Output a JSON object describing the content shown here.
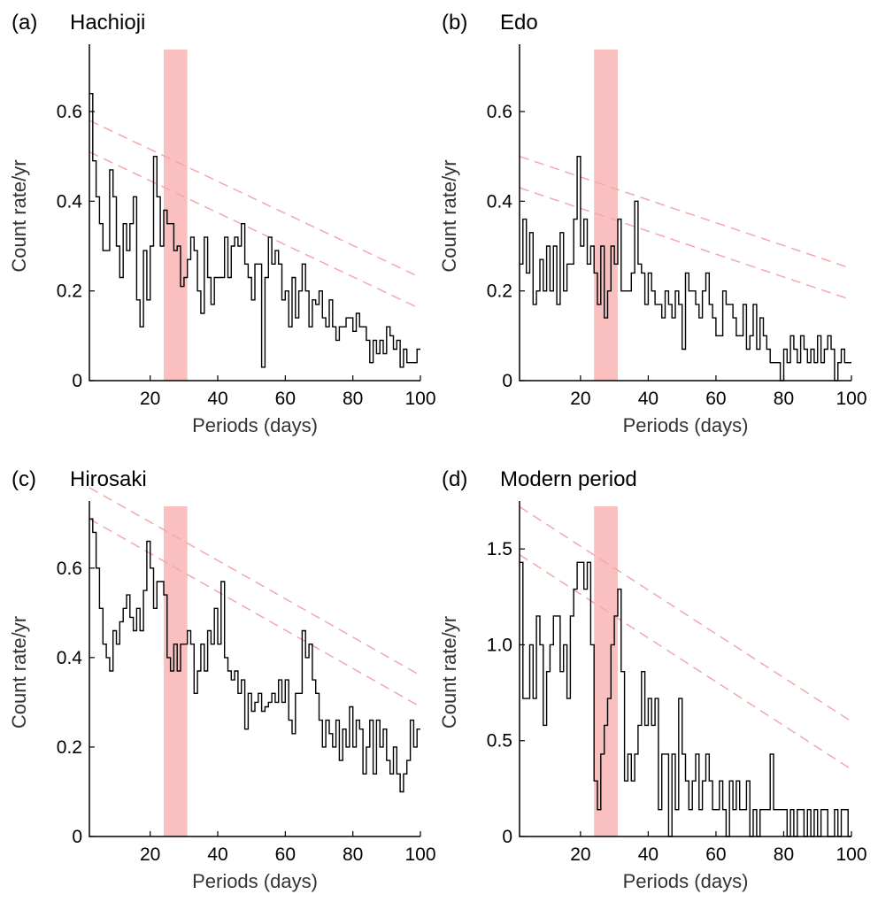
{
  "chart_data": [
    {
      "type": "line",
      "panel_label": "(a)",
      "title": "Hachioji",
      "xlabel": "Periods (days)",
      "ylabel": "Count rate/yr",
      "xlim": [
        2,
        100
      ],
      "ylim": [
        0,
        0.75
      ],
      "xticks": [
        20,
        40,
        60,
        80,
        100
      ],
      "yticks": [
        0,
        0.2,
        0.4,
        0.6
      ],
      "ytick_labels": [
        "0",
        "0.2",
        "0.4",
        "0.6"
      ],
      "grid": false,
      "highlight_band": [
        24,
        31
      ],
      "x": [
        2,
        3,
        4,
        5,
        6,
        7,
        8,
        9,
        10,
        11,
        12,
        13,
        14,
        15,
        16,
        17,
        18,
        19,
        20,
        21,
        22,
        23,
        24,
        25,
        26,
        27,
        28,
        29,
        30,
        31,
        32,
        33,
        34,
        35,
        36,
        37,
        38,
        39,
        40,
        41,
        42,
        43,
        44,
        45,
        46,
        47,
        48,
        49,
        50,
        51,
        52,
        53,
        54,
        55,
        56,
        57,
        58,
        59,
        60,
        61,
        62,
        63,
        64,
        65,
        66,
        67,
        68,
        69,
        70,
        71,
        72,
        73,
        74,
        75,
        76,
        77,
        78,
        79,
        80,
        81,
        82,
        83,
        84,
        85,
        86,
        87,
        88,
        89,
        90,
        91,
        92,
        93,
        94,
        95,
        96,
        97,
        98,
        99
      ],
      "values": [
        0.64,
        0.49,
        0.41,
        0.35,
        0.29,
        0.29,
        0.47,
        0.41,
        0.3,
        0.23,
        0.35,
        0.29,
        0.35,
        0.41,
        0.18,
        0.12,
        0.29,
        0.18,
        0.3,
        0.5,
        0.41,
        0.3,
        0.38,
        0.35,
        0.35,
        0.29,
        0.3,
        0.21,
        0.23,
        0.27,
        0.32,
        0.29,
        0.2,
        0.15,
        0.32,
        0.23,
        0.17,
        0.23,
        0.23,
        0.23,
        0.32,
        0.23,
        0.3,
        0.32,
        0.3,
        0.35,
        0.26,
        0.23,
        0.18,
        0.26,
        0.26,
        0.03,
        0.23,
        0.32,
        0.26,
        0.29,
        0.26,
        0.18,
        0.2,
        0.12,
        0.23,
        0.14,
        0.2,
        0.26,
        0.2,
        0.12,
        0.18,
        0.17,
        0.2,
        0.14,
        0.12,
        0.18,
        0.12,
        0.09,
        0.12,
        0.12,
        0.14,
        0.14,
        0.11,
        0.15,
        0.12,
        0.12,
        0.09,
        0.04,
        0.09,
        0.06,
        0.09,
        0.06,
        0.12,
        0.1,
        0.07,
        0.09,
        0.03,
        0.07,
        0.04,
        0.04,
        0.04,
        0.07
      ],
      "confidence_lines": [
        [
          [
            2,
            0.58
          ],
          [
            100,
            0.23
          ]
        ],
        [
          [
            2,
            0.51
          ],
          [
            100,
            0.16
          ]
        ]
      ]
    },
    {
      "type": "line",
      "panel_label": "(b)",
      "title": "Edo",
      "xlabel": "Periods (days)",
      "ylabel": "Count rate/yr",
      "xlim": [
        2,
        100
      ],
      "ylim": [
        0,
        0.75
      ],
      "xticks": [
        20,
        40,
        60,
        80,
        100
      ],
      "yticks": [
        0,
        0.2,
        0.4,
        0.6
      ],
      "ytick_labels": [
        "0",
        "0.2",
        "0.4",
        "0.6"
      ],
      "grid": false,
      "highlight_band": [
        24,
        31
      ],
      "x": [
        2,
        3,
        4,
        5,
        6,
        7,
        8,
        9,
        10,
        11,
        12,
        13,
        14,
        15,
        16,
        17,
        18,
        19,
        20,
        21,
        22,
        23,
        24,
        25,
        26,
        27,
        28,
        29,
        30,
        31,
        32,
        33,
        34,
        35,
        36,
        37,
        38,
        39,
        40,
        41,
        42,
        43,
        44,
        45,
        46,
        47,
        48,
        49,
        50,
        51,
        52,
        53,
        54,
        55,
        56,
        57,
        58,
        59,
        60,
        61,
        62,
        63,
        64,
        65,
        66,
        67,
        68,
        69,
        70,
        71,
        72,
        73,
        74,
        75,
        76,
        77,
        78,
        79,
        80,
        81,
        82,
        83,
        84,
        85,
        86,
        87,
        88,
        89,
        90,
        91,
        92,
        93,
        94,
        95,
        96,
        97,
        98,
        99
      ],
      "values": [
        0.26,
        0.36,
        0.24,
        0.33,
        0.17,
        0.2,
        0.27,
        0.2,
        0.3,
        0.2,
        0.3,
        0.17,
        0.33,
        0.2,
        0.26,
        0.26,
        0.36,
        0.5,
        0.3,
        0.36,
        0.26,
        0.3,
        0.24,
        0.17,
        0.3,
        0.14,
        0.2,
        0.3,
        0.26,
        0.36,
        0.2,
        0.2,
        0.2,
        0.24,
        0.4,
        0.26,
        0.24,
        0.17,
        0.24,
        0.2,
        0.17,
        0.17,
        0.14,
        0.2,
        0.17,
        0.14,
        0.2,
        0.17,
        0.07,
        0.24,
        0.2,
        0.2,
        0.17,
        0.14,
        0.2,
        0.24,
        0.17,
        0.14,
        0.1,
        0.1,
        0.2,
        0.17,
        0.17,
        0.14,
        0.1,
        0.1,
        0.17,
        0.07,
        0.1,
        0.17,
        0.07,
        0.14,
        0.1,
        0.07,
        0.04,
        0.04,
        0.04,
        0.0,
        0.07,
        0.04,
        0.1,
        0.07,
        0.04,
        0.1,
        0.07,
        0.04,
        0.07,
        0.04,
        0.1,
        0.04,
        0.07,
        0.1,
        0.07,
        0.0,
        0.04,
        0.07,
        0.04,
        0.04
      ],
      "confidence_lines": [
        [
          [
            2,
            0.5
          ],
          [
            100,
            0.25
          ]
        ],
        [
          [
            2,
            0.43
          ],
          [
            100,
            0.18
          ]
        ]
      ]
    },
    {
      "type": "line",
      "panel_label": "(c)",
      "title": "Hirosaki",
      "xlabel": "Periods (days)",
      "ylabel": "Count rate/yr",
      "xlim": [
        2,
        100
      ],
      "ylim": [
        0,
        0.75
      ],
      "xticks": [
        20,
        40,
        60,
        80,
        100
      ],
      "yticks": [
        0,
        0.2,
        0.4,
        0.6
      ],
      "ytick_labels": [
        "0",
        "0.2",
        "0.4",
        "0.6"
      ],
      "grid": false,
      "highlight_band": [
        24,
        31
      ],
      "x": [
        2,
        3,
        4,
        5,
        6,
        7,
        8,
        9,
        10,
        11,
        12,
        13,
        14,
        15,
        16,
        17,
        18,
        19,
        20,
        21,
        22,
        23,
        24,
        25,
        26,
        27,
        28,
        29,
        30,
        31,
        32,
        33,
        34,
        35,
        36,
        37,
        38,
        39,
        40,
        41,
        42,
        43,
        44,
        45,
        46,
        47,
        48,
        49,
        50,
        51,
        52,
        53,
        54,
        55,
        56,
        57,
        58,
        59,
        60,
        61,
        62,
        63,
        64,
        65,
        66,
        67,
        68,
        69,
        70,
        71,
        72,
        73,
        74,
        75,
        76,
        77,
        78,
        79,
        80,
        81,
        82,
        83,
        84,
        85,
        86,
        87,
        88,
        89,
        90,
        91,
        92,
        93,
        94,
        95,
        96,
        97,
        98,
        99
      ],
      "values": [
        0.71,
        0.68,
        0.6,
        0.51,
        0.43,
        0.4,
        0.37,
        0.46,
        0.43,
        0.48,
        0.51,
        0.54,
        0.49,
        0.46,
        0.51,
        0.46,
        0.55,
        0.66,
        0.6,
        0.51,
        0.57,
        0.57,
        0.54,
        0.4,
        0.37,
        0.43,
        0.37,
        0.43,
        0.43,
        0.46,
        0.43,
        0.32,
        0.37,
        0.43,
        0.37,
        0.46,
        0.43,
        0.51,
        0.43,
        0.57,
        0.4,
        0.37,
        0.35,
        0.37,
        0.32,
        0.35,
        0.24,
        0.32,
        0.28,
        0.3,
        0.32,
        0.28,
        0.29,
        0.3,
        0.32,
        0.3,
        0.35,
        0.3,
        0.35,
        0.26,
        0.23,
        0.32,
        0.32,
        0.46,
        0.4,
        0.43,
        0.35,
        0.32,
        0.26,
        0.2,
        0.26,
        0.23,
        0.2,
        0.26,
        0.17,
        0.24,
        0.2,
        0.29,
        0.2,
        0.26,
        0.24,
        0.14,
        0.2,
        0.26,
        0.14,
        0.26,
        0.2,
        0.24,
        0.17,
        0.14,
        0.2,
        0.14,
        0.1,
        0.14,
        0.17,
        0.26,
        0.2,
        0.24
      ],
      "confidence_lines": [
        [
          [
            2,
            0.78
          ],
          [
            100,
            0.36
          ]
        ],
        [
          [
            2,
            0.71
          ],
          [
            100,
            0.29
          ]
        ]
      ]
    },
    {
      "type": "line",
      "panel_label": "(d)",
      "title": "Modern period",
      "xlabel": "Periods (days)",
      "ylabel": "Count rate/yr",
      "xlim": [
        2,
        100
      ],
      "ylim": [
        0,
        1.75
      ],
      "xticks": [
        20,
        40,
        60,
        80,
        100
      ],
      "yticks": [
        0,
        0.5,
        1.0,
        1.5
      ],
      "ytick_labels": [
        "0",
        "0.5",
        "1.0",
        "1.5"
      ],
      "grid": false,
      "highlight_band": [
        24,
        31
      ],
      "x": [
        2,
        3,
        4,
        5,
        6,
        7,
        8,
        9,
        10,
        11,
        12,
        13,
        14,
        15,
        16,
        17,
        18,
        19,
        20,
        21,
        22,
        23,
        24,
        25,
        26,
        27,
        28,
        29,
        30,
        31,
        32,
        33,
        34,
        35,
        36,
        37,
        38,
        39,
        40,
        41,
        42,
        43,
        44,
        45,
        46,
        47,
        48,
        49,
        50,
        51,
        52,
        53,
        54,
        55,
        56,
        57,
        58,
        59,
        60,
        61,
        62,
        63,
        64,
        65,
        66,
        67,
        68,
        69,
        70,
        71,
        72,
        73,
        74,
        75,
        76,
        77,
        78,
        79,
        80,
        81,
        82,
        83,
        84,
        85,
        86,
        87,
        88,
        89,
        90,
        91,
        92,
        93,
        94,
        95,
        96,
        97,
        98,
        99
      ],
      "values": [
        1.43,
        0.72,
        0.72,
        1.0,
        0.72,
        1.15,
        1.0,
        0.58,
        0.86,
        1.0,
        1.15,
        1.15,
        0.86,
        1.0,
        0.72,
        1.15,
        1.29,
        1.43,
        1.43,
        1.29,
        1.43,
        1.0,
        0.29,
        0.14,
        0.43,
        0.58,
        0.72,
        1.0,
        1.15,
        1.29,
        0.86,
        0.29,
        0.43,
        0.29,
        0.43,
        0.58,
        0.86,
        0.58,
        0.72,
        0.58,
        0.72,
        0.14,
        0.43,
        0.43,
        0.0,
        0.43,
        0.14,
        0.72,
        0.43,
        0.29,
        0.14,
        0.29,
        0.43,
        0.14,
        0.29,
        0.43,
        0.29,
        0.14,
        0.14,
        0.29,
        0.14,
        0.0,
        0.29,
        0.14,
        0.29,
        0.14,
        0.14,
        0.29,
        0.0,
        0.14,
        0.0,
        0.14,
        0.14,
        0.14,
        0.43,
        0.14,
        0.14,
        0.14,
        0.14,
        0.0,
        0.14,
        0.0,
        0.14,
        0.14,
        0.0,
        0.14,
        0.0,
        0.14,
        0.0,
        0.14,
        0.14,
        0.0,
        0.0,
        0.14,
        0.0,
        0.14,
        0.14,
        0.0
      ],
      "confidence_lines": [
        [
          [
            2,
            1.72
          ],
          [
            100,
            0.6
          ]
        ],
        [
          [
            2,
            1.47
          ],
          [
            100,
            0.35
          ]
        ]
      ]
    }
  ]
}
